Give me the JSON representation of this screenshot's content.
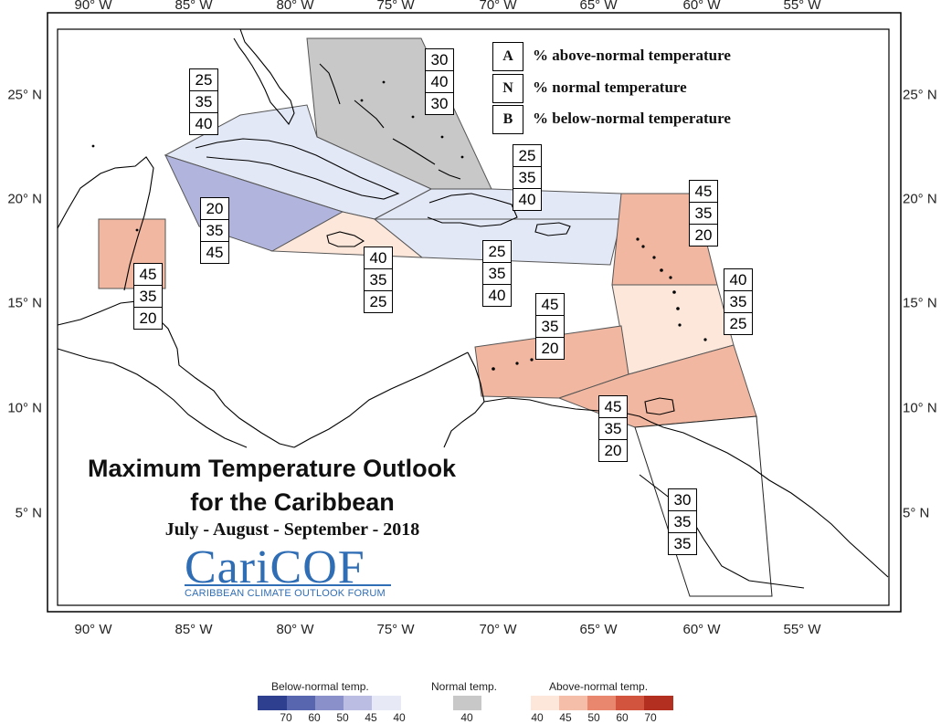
{
  "map": {
    "lon_ticks": [
      "90° W",
      "85° W",
      "80° W",
      "75° W",
      "70° W",
      "65° W",
      "60° W",
      "55° W"
    ],
    "lat_ticks": [
      "25° N",
      "20° N",
      "15° N",
      "10° N",
      "5° N"
    ]
  },
  "key": {
    "rows": [
      {
        "letter": "A",
        "text": "% above-normal temperature"
      },
      {
        "letter": "N",
        "text": "% normal temperature"
      },
      {
        "letter": "B",
        "text": "% below-normal temperature"
      }
    ]
  },
  "regions": [
    {
      "name": "bahamas-north",
      "fill": "#c8c8c8",
      "a": "30",
      "n": "40",
      "b": "30"
    },
    {
      "name": "cuba",
      "fill": "#e3e8f6",
      "a": "25",
      "n": "35",
      "b": "40"
    },
    {
      "name": "cayman-basin",
      "fill": "#b1b5dd",
      "a": "20",
      "n": "35",
      "b": "45"
    },
    {
      "name": "belize",
      "fill": "#f1b7a0",
      "a": "45",
      "n": "35",
      "b": "20"
    },
    {
      "name": "jamaica",
      "fill": "#fde7db",
      "a": "40",
      "n": "35",
      "b": "25"
    },
    {
      "name": "turks-caicos",
      "fill": "#e3e8f6",
      "a": "25",
      "n": "35",
      "b": "40"
    },
    {
      "name": "hispaniola-puerto-rico",
      "fill": "#e3e8f6",
      "a": "25",
      "n": "35",
      "b": "40"
    },
    {
      "name": "leeward-islands",
      "fill": "#f1b7a0",
      "a": "45",
      "n": "35",
      "b": "20"
    },
    {
      "name": "windward-islands",
      "fill": "#fde7db",
      "a": "40",
      "n": "35",
      "b": "25"
    },
    {
      "name": "abc-islands",
      "fill": "#f1b7a0",
      "a": "45",
      "n": "35",
      "b": "20"
    },
    {
      "name": "trinidad-tobago",
      "fill": "#f1b7a0",
      "a": "45",
      "n": "35",
      "b": "20"
    },
    {
      "name": "guianas",
      "fill": "#ffffff",
      "a": "30",
      "n": "35",
      "b": "35"
    }
  ],
  "title": {
    "line1": "Maximum Temperature Outlook",
    "line2": "for the Caribbean",
    "line3": "July - August - September - 2018"
  },
  "logo": {
    "word": "CariCOF",
    "subtitle": "CARIBBEAN CLIMATE OUTLOOK FORUM"
  },
  "colorbar": {
    "below": {
      "title": "Below-normal temp.",
      "colors": [
        "#2f3f8f",
        "#5866b0",
        "#8a90c9",
        "#bbbde3",
        "#e7e9f6"
      ],
      "ticks": [
        "70",
        "60",
        "50",
        "45",
        "40"
      ]
    },
    "normal": {
      "title": "Normal temp.",
      "color": "#c8c8c8",
      "tick": "40"
    },
    "above": {
      "title": "Above-normal temp.",
      "colors": [
        "#fde7db",
        "#f5bea8",
        "#e8876e",
        "#d2543f",
        "#b32f1f"
      ],
      "ticks": [
        "40",
        "45",
        "50",
        "60",
        "70"
      ]
    }
  }
}
